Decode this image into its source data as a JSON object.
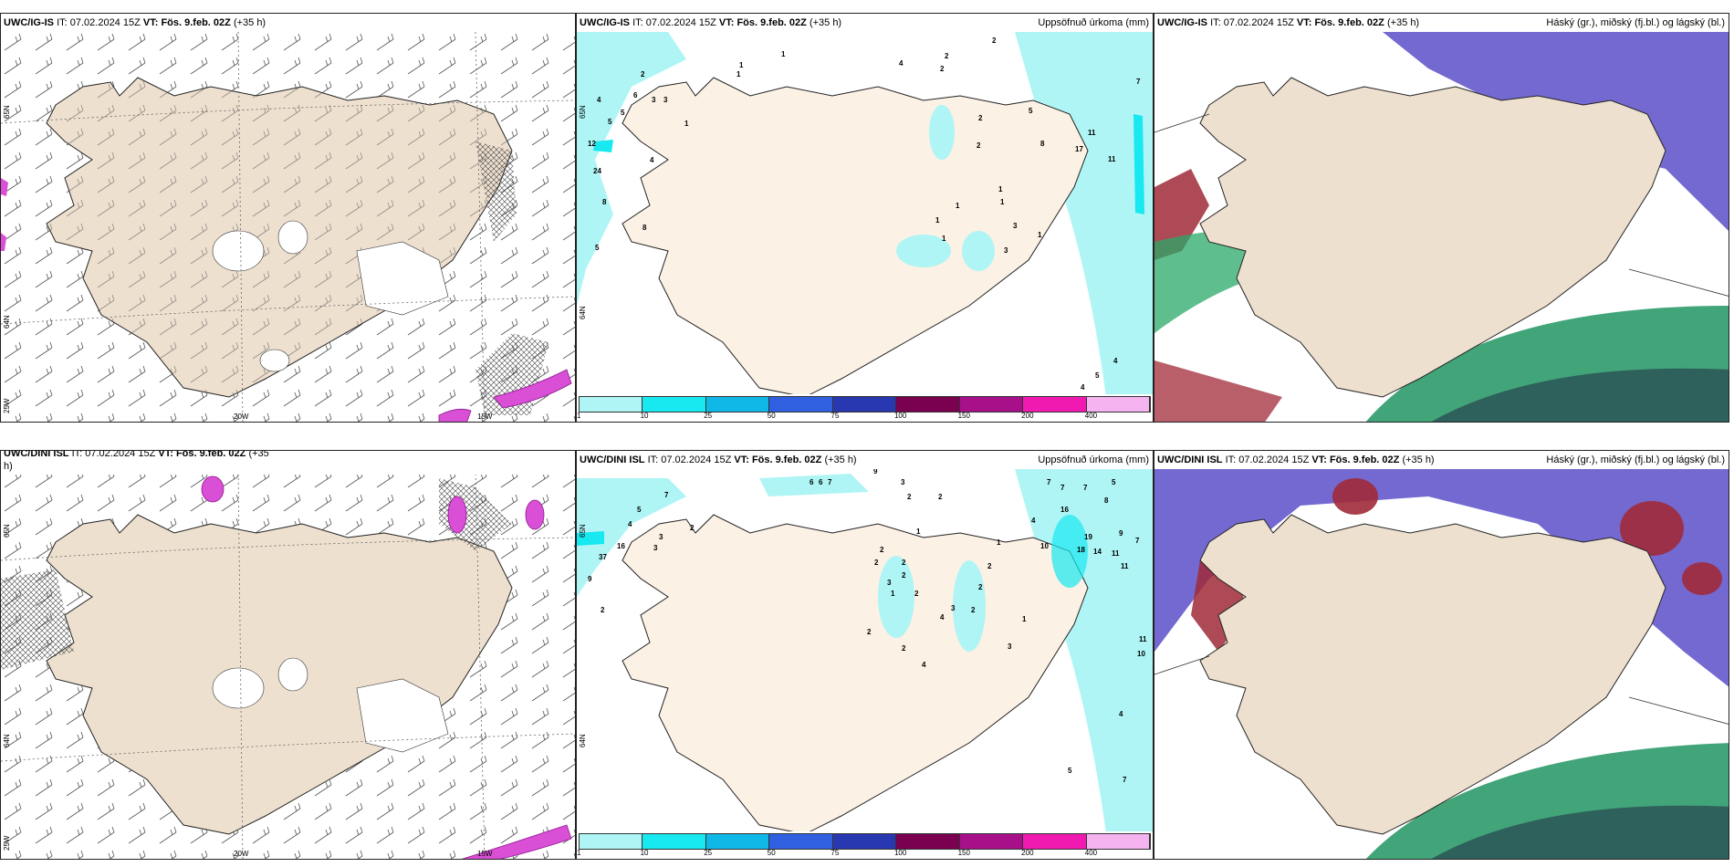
{
  "colorbar": {
    "labels": [
      "1",
      "10",
      "25",
      "50",
      "75",
      "100",
      "150",
      "200",
      "400"
    ],
    "colors": [
      "#aff5f5",
      "#18e8f0",
      "#10b8e8",
      "#3060e0",
      "#2838b0",
      "#7a0050",
      "#a8108a",
      "#f01ab0",
      "#f5b4f0"
    ]
  },
  "panels": [
    {
      "model": "UWC/IG-IS",
      "it_label": "IT:",
      "it_value": "07.02.2024 15Z",
      "vt_label": "VT:",
      "vt_value": "Fös. 9.feb. 02Z",
      "lead": "(+35 h)",
      "right": "",
      "lat_labels": [
        "65N",
        "64N",
        "25W"
      ],
      "lon_labels": [
        "20W",
        "15W"
      ],
      "numbers": []
    },
    {
      "model": "UWC/IG-IS",
      "it_label": "IT:",
      "it_value": "07.02.2024 15Z",
      "vt_label": "VT:",
      "vt_value": "Fös. 9.feb. 02Z",
      "lead": "(+35 h)",
      "right": "Uppsöfnuð úrkoma (mm)",
      "lat_labels": [
        "65N",
        "64N"
      ],
      "lon_labels": [],
      "numbers": [
        "2",
        "1",
        "1",
        "1",
        "4",
        "2",
        "2",
        "4",
        "5",
        "6",
        "3",
        "3",
        "5",
        "1",
        "12",
        "4",
        "24",
        "8",
        "8",
        "5",
        "7",
        "2",
        "2",
        "2",
        "5",
        "8",
        "11",
        "17",
        "11",
        "1",
        "1",
        "1",
        "1",
        "1",
        "3",
        "3",
        "1",
        "4",
        "5",
        "4"
      ]
    },
    {
      "model": "UWC/IG-IS",
      "it_label": "IT:",
      "it_value": "07.02.2024 15Z",
      "vt_label": "VT:",
      "vt_value": "Fös. 9.feb. 02Z",
      "lead": "(+35 h)",
      "right": "Háský (gr.), miðský (fj.bl.) og lágský (bl.)",
      "lat_labels": [],
      "lon_labels": [],
      "numbers": []
    },
    {
      "model": "UWC/DINI ISL",
      "it_label": "IT:",
      "it_value": "07.02.2024 15Z",
      "vt_label": "VT:",
      "vt_value": "Fös. 9.feb. 02Z",
      "lead": "(+35",
      "lead2": "h)",
      "right": "",
      "lat_labels": [
        "65N",
        "64N",
        "25W"
      ],
      "lon_labels": [
        "20W",
        "15W"
      ],
      "numbers": []
    },
    {
      "model": "UWC/DINI ISL",
      "it_label": "IT:",
      "it_value": "07.02.2024 15Z",
      "vt_label": "VT:",
      "vt_value": "Fös. 9.feb. 02Z",
      "lead": "(+35 h)",
      "right": "Uppsöfnuð úrkoma (mm)",
      "lat_labels": [
        "65N",
        "64N"
      ],
      "lon_labels": [],
      "numbers": [
        "5",
        "7",
        "4",
        "16",
        "37",
        "9",
        "2",
        "3",
        "3",
        "2",
        "6",
        "6",
        "7",
        "9",
        "3",
        "2",
        "2",
        "1",
        "2",
        "2",
        "2",
        "2",
        "3",
        "1",
        "2",
        "4",
        "3",
        "4",
        "2",
        "1",
        "2",
        "1",
        "2",
        "3",
        "5",
        "5",
        "6",
        "6",
        "7",
        "7",
        "7",
        "4",
        "5",
        "8",
        "16",
        "10",
        "19",
        "18",
        "14",
        "11",
        "11",
        "9",
        "7",
        "11",
        "10",
        "4",
        "5",
        "7",
        "2",
        "2"
      ]
    },
    {
      "model": "UWC/DINI ISL",
      "it_label": "IT:",
      "it_value": "07.02.2024 15Z",
      "vt_label": "VT:",
      "vt_value": "Fös. 9.feb. 02Z",
      "lead": "(+35 h)",
      "right": "Háský (gr.), miðský (fj.bl.) og lágský (bl.)",
      "lat_labels": [],
      "lon_labels": [],
      "numbers": []
    }
  ]
}
